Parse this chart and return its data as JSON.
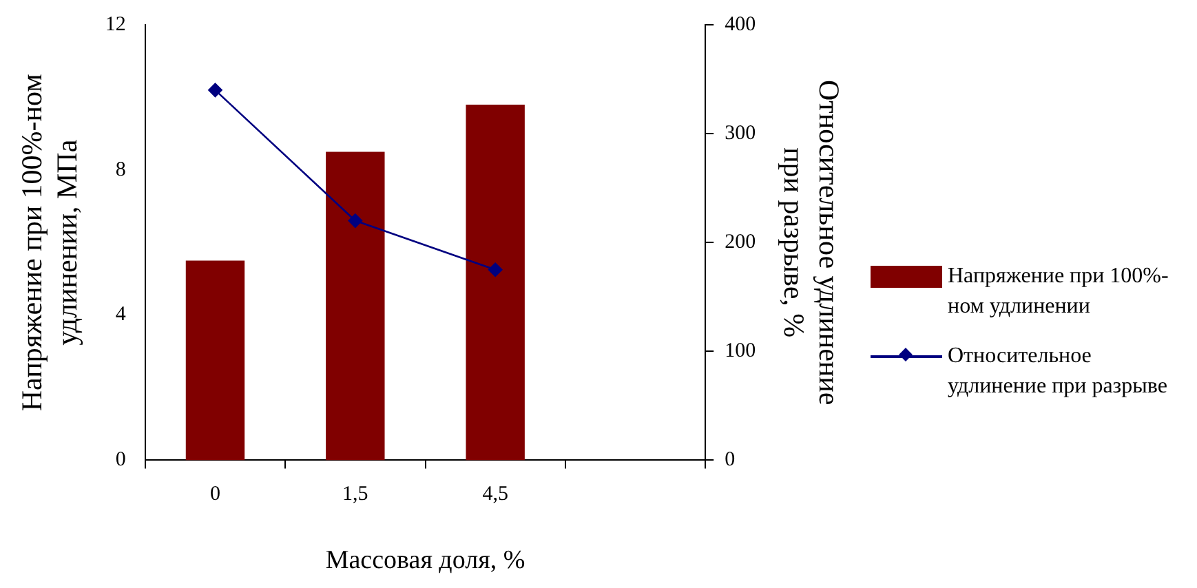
{
  "chart_data": {
    "type": "bar",
    "xlabel": "Массовая доля, %",
    "ylabel": "Напряжение при 100%-ном удлинении, МПа",
    "y2label": "Относительное удлинение при разрыве, %",
    "categories": [
      "0",
      "1,5",
      "4,5",
      null
    ],
    "series": [
      {
        "name": "Напряжение при 100%-ном удлинении",
        "color": "#800000",
        "values": [
          5.5,
          8.5,
          9.8,
          null
        ]
      },
      {
        "name": "Относительное удлинение при разрыве",
        "type": "line",
        "axis": "y2",
        "color": "#000080",
        "marker": "diamond",
        "values": [
          340,
          220,
          175,
          null
        ]
      }
    ],
    "ylim": [
      0,
      12
    ],
    "yticks": [
      0,
      4,
      8,
      12
    ],
    "y2lim": [
      0,
      400
    ],
    "y2ticks": [
      0,
      100,
      200,
      300,
      400
    ],
    "grid": false,
    "legend": "right"
  }
}
